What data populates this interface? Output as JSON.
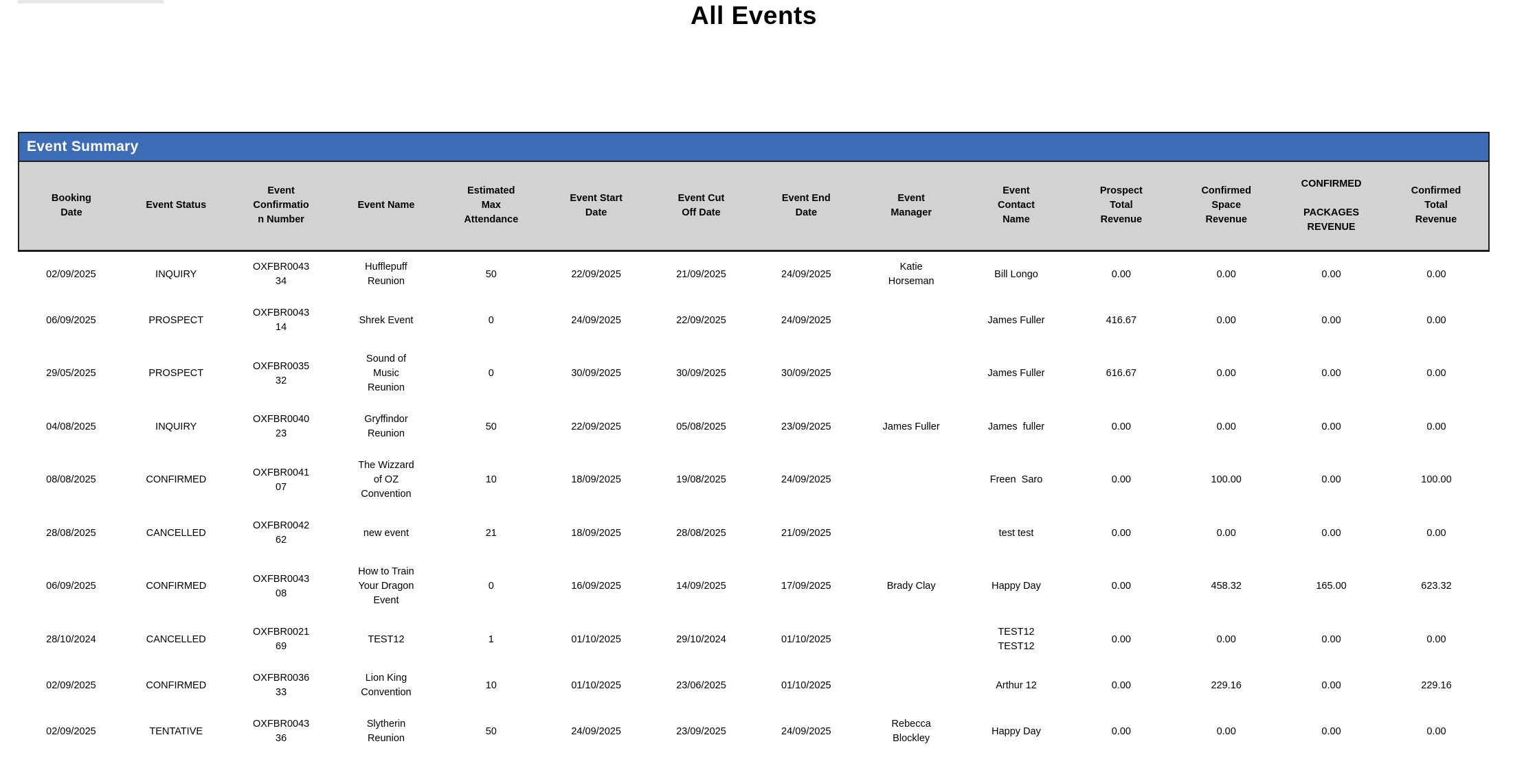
{
  "page": {
    "title": "All Events"
  },
  "report": {
    "section_title": "Event Summary",
    "colors": {
      "header_bar_bg": "#3c6cb4",
      "header_bar_text": "#ffffff",
      "column_header_bg": "#d2d2d2",
      "border": "#1f1f1f",
      "top_strip": "#e8e8e8"
    },
    "columns": [
      {
        "key": "booking-date",
        "label": "Booking\nDate"
      },
      {
        "key": "event-status",
        "label": "Event Status"
      },
      {
        "key": "event-confirmation-number",
        "label": "Event\nConfirmatio\nn Number"
      },
      {
        "key": "event-name",
        "label": "Event Name"
      },
      {
        "key": "estimated-max-attendance",
        "label": "Estimated\nMax\nAttendance"
      },
      {
        "key": "event-start-date",
        "label": "Event Start\nDate"
      },
      {
        "key": "event-cut-off-date",
        "label": "Event Cut\nOff Date"
      },
      {
        "key": "event-end-date",
        "label": "Event End\nDate"
      },
      {
        "key": "event-manager",
        "label": "Event\nManager"
      },
      {
        "key": "event-contact-name",
        "label": "Event\nContact\nName"
      },
      {
        "key": "prospect-total-revenue",
        "label": "Prospect\nTotal\nRevenue"
      },
      {
        "key": "confirmed-space-revenue",
        "label": "Confirmed\nSpace\nRevenue"
      },
      {
        "key": "confirmed-packages-revenue",
        "label": "CONFIRMED\n\nPACKAGES\nREVENUE"
      },
      {
        "key": "confirmed-total-revenue",
        "label": "Confirmed\nTotal\nRevenue"
      }
    ],
    "rows": [
      [
        "02/09/2025",
        "INQUIRY",
        "OXFBR0043\n34",
        "Hufflepuff\nReunion",
        "50",
        "22/09/2025",
        "21/09/2025",
        "24/09/2025",
        "Katie\nHorseman",
        "Bill Longo",
        "0.00",
        "0.00",
        "0.00",
        "0.00"
      ],
      [
        "06/09/2025",
        "PROSPECT",
        "OXFBR0043\n14",
        "Shrek Event",
        "0",
        "24/09/2025",
        "22/09/2025",
        "24/09/2025",
        "",
        "James Fuller",
        "416.67",
        "0.00",
        "0.00",
        "0.00"
      ],
      [
        "29/05/2025",
        "PROSPECT",
        "OXFBR0035\n32",
        "Sound of\nMusic\nReunion",
        "0",
        "30/09/2025",
        "30/09/2025",
        "30/09/2025",
        "",
        "James Fuller",
        "616.67",
        "0.00",
        "0.00",
        "0.00"
      ],
      [
        "04/08/2025",
        "INQUIRY",
        "OXFBR0040\n23",
        "Gryffindor\nReunion",
        "50",
        "22/09/2025",
        "05/08/2025",
        "23/09/2025",
        "James Fuller",
        "James  fuller",
        "0.00",
        "0.00",
        "0.00",
        "0.00"
      ],
      [
        "08/08/2025",
        "CONFIRMED",
        "OXFBR0041\n07",
        "The Wizzard\nof OZ\nConvention",
        "10",
        "18/09/2025",
        "19/08/2025",
        "24/09/2025",
        "",
        "Freen  Saro",
        "0.00",
        "100.00",
        "0.00",
        "100.00"
      ],
      [
        "28/08/2025",
        "CANCELLED",
        "OXFBR0042\n62",
        "new event",
        "21",
        "18/09/2025",
        "28/08/2025",
        "21/09/2025",
        "",
        "test test",
        "0.00",
        "0.00",
        "0.00",
        "0.00"
      ],
      [
        "06/09/2025",
        "CONFIRMED",
        "OXFBR0043\n08",
        "How to Train\nYour Dragon\nEvent",
        "0",
        "16/09/2025",
        "14/09/2025",
        "17/09/2025",
        "Brady Clay",
        "Happy Day",
        "0.00",
        "458.32",
        "165.00",
        "623.32"
      ],
      [
        "28/10/2024",
        "CANCELLED",
        "OXFBR0021\n69",
        "TEST12",
        "1",
        "01/10/2025",
        "29/10/2024",
        "01/10/2025",
        "",
        "TEST12\nTEST12",
        "0.00",
        "0.00",
        "0.00",
        "0.00"
      ],
      [
        "02/09/2025",
        "CONFIRMED",
        "OXFBR0036\n33",
        "Lion King\nConvention",
        "10",
        "01/10/2025",
        "23/06/2025",
        "01/10/2025",
        "",
        "Arthur 12",
        "0.00",
        "229.16",
        "0.00",
        "229.16"
      ],
      [
        "02/09/2025",
        "TENTATIVE",
        "OXFBR0043\n36",
        "Slytherin\nReunion",
        "50",
        "24/09/2025",
        "23/09/2025",
        "24/09/2025",
        "Rebecca\nBlockley",
        "Happy Day",
        "0.00",
        "0.00",
        "0.00",
        "0.00"
      ]
    ]
  }
}
